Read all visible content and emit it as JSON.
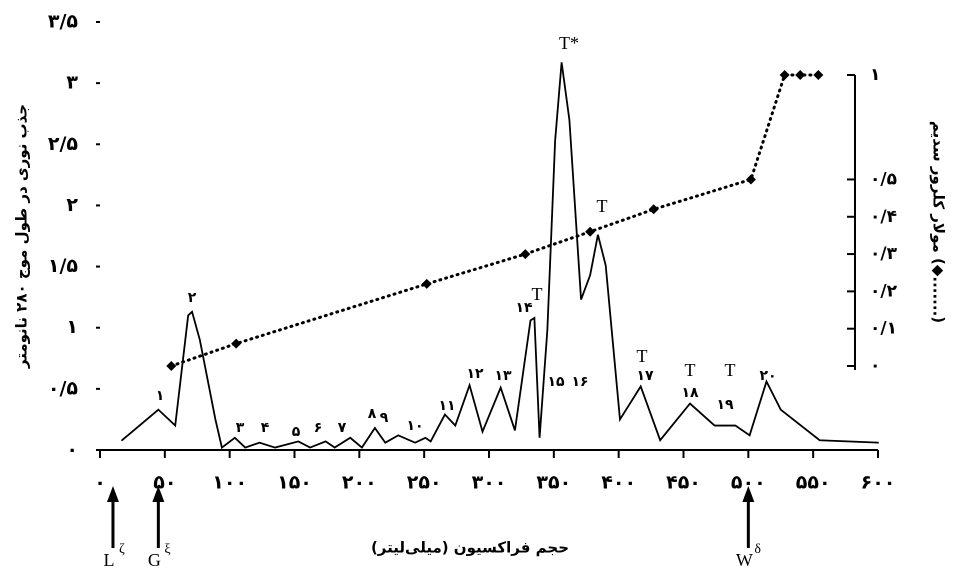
{
  "chart_data": {
    "type": "line",
    "y_label": "جذب نوری در طول موج ۲۸۰ نانومتر",
    "y2_label": "مولار کلرور سدیم (◆.......)",
    "x_label": "حجم فراکسیون (میلی‌لیتر)",
    "xlim": [
      0,
      600
    ],
    "xticks": [
      {
        "value": 0,
        "label": "۰"
      },
      {
        "value": 50,
        "label": "۵۰"
      },
      {
        "value": 100,
        "label": "۱۰۰"
      },
      {
        "value": 150,
        "label": "۱۵۰"
      },
      {
        "value": 200,
        "label": "۲۰۰"
      },
      {
        "value": 250,
        "label": "۲۵۰"
      },
      {
        "value": 300,
        "label": "۳۰۰"
      },
      {
        "value": 350,
        "label": "۳۵۰"
      },
      {
        "value": 400,
        "label": "۴۰۰"
      },
      {
        "value": 450,
        "label": "۴۵۰"
      },
      {
        "value": 500,
        "label": "۵۰۰"
      },
      {
        "value": 550,
        "label": "۵۵۰"
      },
      {
        "value": 600,
        "label": "۶۰۰"
      }
    ],
    "ylim": [
      0,
      3.5
    ],
    "yticks": [
      {
        "value": 0,
        "label": "۰"
      },
      {
        "value": 0.5,
        "label": "۰/۵"
      },
      {
        "value": 1,
        "label": "۱"
      },
      {
        "value": 1.5,
        "label": "۱/۵"
      },
      {
        "value": 2,
        "label": "۲"
      },
      {
        "value": 2.5,
        "label": "۲/۵"
      },
      {
        "value": 3,
        "label": "۳"
      },
      {
        "value": 3.5,
        "label": "۳/۵"
      }
    ],
    "y2lim": [
      0,
      1
    ],
    "y2scale": "broken",
    "y2ticks": [
      {
        "value": 0,
        "label": "۰"
      },
      {
        "value": 0.1,
        "label": "۰/۱"
      },
      {
        "value": 0.2,
        "label": "۰/۲"
      },
      {
        "value": 0.3,
        "label": "۰/۳"
      },
      {
        "value": 0.4,
        "label": "۰/۴"
      },
      {
        "value": 0.5,
        "label": "۰/۵"
      },
      {
        "value": 1,
        "label": "۱"
      }
    ],
    "series": [
      {
        "color": "#000000",
        "style": "solid",
        "x": [
          17,
          45,
          58,
          68,
          71,
          77,
          89,
          94,
          104,
          112,
          123,
          135,
          153,
          162,
          174,
          181,
          193,
          202,
          212,
          220,
          230,
          243,
          251,
          255,
          266,
          274,
          285,
          295,
          309,
          320,
          332,
          335,
          339,
          345,
          351,
          356,
          362,
          371,
          378,
          384,
          390,
          401,
          417,
          432,
          455,
          474,
          490,
          501,
          514,
          525,
          555,
          600
        ],
        "values": [
          0.08,
          0.33,
          0.2,
          1.1,
          1.13,
          0.9,
          0.25,
          0.02,
          0.1,
          0.02,
          0.06,
          0.02,
          0.07,
          0.02,
          0.07,
          0.02,
          0.1,
          0.02,
          0.18,
          0.06,
          0.12,
          0.06,
          0.1,
          0.07,
          0.29,
          0.2,
          0.53,
          0.15,
          0.51,
          0.16,
          1.06,
          1.08,
          0.1,
          0.98,
          2.53,
          3.17,
          2.7,
          1.23,
          1.43,
          1.76,
          1.51,
          0.25,
          0.52,
          0.08,
          0.38,
          0.2,
          0.2,
          0.12,
          0.56,
          0.33,
          0.08,
          0.06
        ]
      },
      {
        "color": "#000000",
        "style": "dotted",
        "axis": "y2",
        "marker": "diamond",
        "x": [
          55,
          105,
          252,
          328,
          378,
          427,
          502,
          528,
          540,
          554
        ],
        "values": [
          0,
          0.06,
          0.22,
          0.3,
          0.36,
          0.42,
          0.5,
          1,
          1,
          1
        ]
      }
    ],
    "peak_labels": [
      "۱",
      "۲",
      "۳",
      "۴",
      "۵",
      "۶",
      "۷",
      "۸",
      "۹",
      "۱۰",
      "۱۱",
      "۱۲",
      "۱۳",
      "۱۴",
      "۱۵",
      "۱۶",
      "۱۷",
      "۱۸",
      "۱۹",
      "۲۰"
    ],
    "t_labels": [
      "T",
      "T*",
      "T",
      "T",
      "T",
      "T"
    ],
    "markers": [
      {
        "label": "L",
        "sup": "ζ",
        "x": 10
      },
      {
        "label": "G",
        "sup": "ξ",
        "x": 45
      },
      {
        "label": "W",
        "sup": "δ",
        "x": 500
      }
    ]
  }
}
